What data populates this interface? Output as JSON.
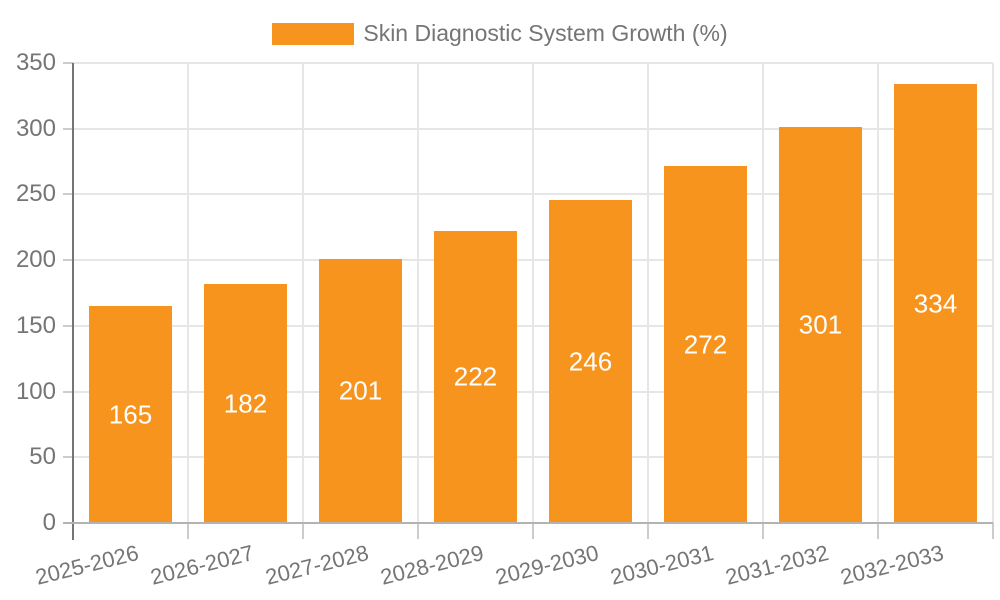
{
  "legend": {
    "series_label": "Skin Diagnostic System Growth (%)"
  },
  "colors": {
    "bar": "#F7941E",
    "bar_label": "#FFFFFF",
    "axis_text": "#757575",
    "gridline": "#E6E6E6",
    "tick": "#CCCCCC",
    "baseline": "#B3B3B3",
    "axis_line": "#757575",
    "background": "#FFFFFF"
  },
  "chart_data": {
    "type": "bar",
    "title": "Skin Diagnostic System Growth (%)",
    "legend": [
      "Skin Diagnostic System Growth (%)"
    ],
    "legend_position": "top",
    "categories": [
      "2025-2026",
      "2026-2027",
      "2027-2028",
      "2028-2029",
      "2029-2030",
      "2030-2031",
      "2031-2032",
      "2032-2033"
    ],
    "values": [
      165,
      182,
      201,
      222,
      246,
      272,
      301,
      334
    ],
    "bar_value_labels": [
      165,
      182,
      201,
      222,
      246,
      272,
      301,
      334
    ],
    "xlabel": "",
    "ylabel": "",
    "ylim": [
      0,
      350
    ],
    "yticks": [
      0,
      50,
      100,
      150,
      200,
      250,
      300,
      350
    ],
    "grid": true,
    "x_tick_rotation_deg": -14
  }
}
